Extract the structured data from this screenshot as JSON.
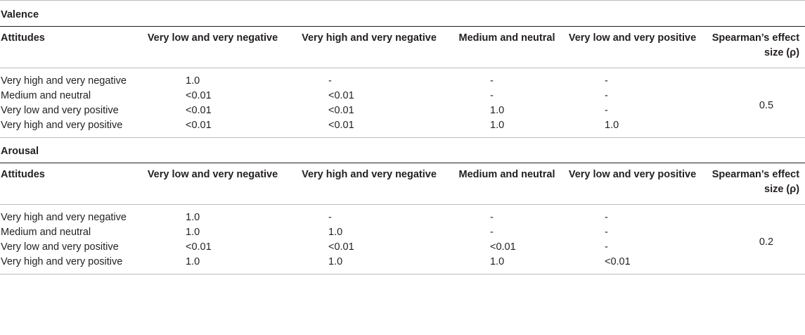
{
  "valence": {
    "title": "Valence",
    "headers": [
      "Attitudes",
      "Very low and very negative",
      "Very high and very negative",
      "Medium and neutral",
      "Very low and very positive",
      "Spearman’s effect size (ρ)"
    ],
    "rows": [
      {
        "label": "Very high and very negative",
        "c1": "1.0",
        "c2": "-",
        "c3": "-",
        "c4": "-"
      },
      {
        "label": "Medium and neutral",
        "c1": "<0.01",
        "c2": "<0.01",
        "c3": "-",
        "c4": "-"
      },
      {
        "label": "Very low and very positive",
        "c1": "<0.01",
        "c2": "<0.01",
        "c3": "1.0",
        "c4": "-"
      },
      {
        "label": "Very high and very positive",
        "c1": "<0.01",
        "c2": "<0.01",
        "c3": "1.0",
        "c4": "1.0"
      }
    ],
    "effect_size": "0.5"
  },
  "arousal": {
    "title": "Arousal",
    "headers": [
      "Attitudes",
      "Very low and very negative",
      "Very high and very negative",
      "Medium and neutral",
      "Very low and very positive",
      "Spearman’s effect size (ρ)"
    ],
    "rows": [
      {
        "label": "Very high and very negative",
        "c1": "1.0",
        "c2": "-",
        "c3": "-",
        "c4": "-"
      },
      {
        "label": "Medium and neutral",
        "c1": "1.0",
        "c2": "1.0",
        "c3": "-",
        "c4": "-"
      },
      {
        "label": "Very low and very positive",
        "c1": "<0.01",
        "c2": "<0.01",
        "c3": "<0.01",
        "c4": "-"
      },
      {
        "label": "Very high and very positive",
        "c1": "1.0",
        "c2": "1.0",
        "c3": "1.0",
        "c4": "<0.01"
      }
    ],
    "effect_size": "0.2"
  }
}
